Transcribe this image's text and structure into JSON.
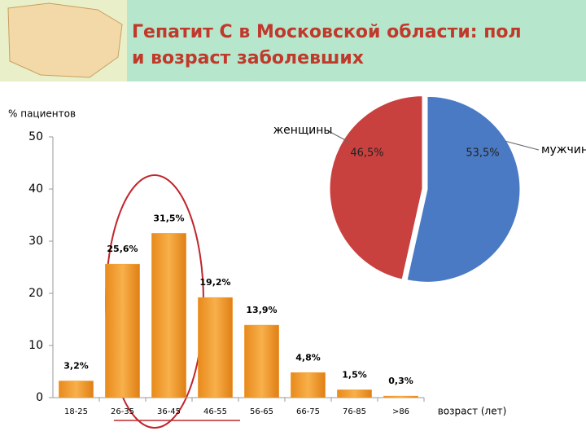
{
  "title": "Гепатит С в Московской области: пол и возраст заболевших",
  "chart_data": [
    {
      "type": "bar",
      "y_label": "% пациентов",
      "x_label": "возраст (лет)",
      "categories": [
        "18-25",
        "26-35",
        "36-45",
        "46-55",
        "56-65",
        "66-75",
        "76-85",
        ">86"
      ],
      "values": [
        3.2,
        25.6,
        31.5,
        19.2,
        13.9,
        4.8,
        1.5,
        0.3
      ],
      "value_labels": [
        "3,2%",
        "25,6%",
        "31,5%",
        "19,2%",
        "13,9%",
        "4,8%",
        "1,5%",
        "0,3%"
      ],
      "color": "#f39a2b",
      "ylim": [
        0,
        50
      ],
      "yticks": [
        0,
        10,
        20,
        30,
        40,
        50
      ],
      "grid": false
    },
    {
      "type": "pie",
      "categories": [
        "мужчины",
        "женщины"
      ],
      "values": [
        53.5,
        46.5
      ],
      "value_labels": [
        "53,5%",
        "46,5%"
      ],
      "colors": [
        "#4a7ac4",
        "#c9413f"
      ]
    }
  ]
}
